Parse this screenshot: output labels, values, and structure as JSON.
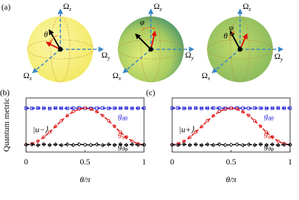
{
  "panel_a": {
    "label": "(a)",
    "axis_symbol": "Ω",
    "axis_subscripts": [
      "x",
      "y",
      "z"
    ],
    "angles": [
      "θ",
      "φ"
    ]
  },
  "chart_data": [
    {
      "type": "line",
      "panel_label": "(b)",
      "state_label": "|u−⟩",
      "xlabel": "θ/π",
      "ylabel": "Quantum metric",
      "x": [
        0,
        0.05,
        0.1,
        0.15,
        0.2,
        0.25,
        0.3,
        0.35,
        0.4,
        0.45,
        0.5,
        0.55,
        0.6,
        0.65,
        0.7,
        0.75,
        0.8,
        0.85,
        0.9,
        0.95,
        1
      ],
      "xlim": [
        0,
        1
      ],
      "xticks": [
        0,
        0.5,
        1
      ],
      "ylim": [
        -0.05,
        0.32
      ],
      "series": [
        {
          "name": "gθθ",
          "color": "#1a1ad8",
          "marker": "square",
          "values": [
            0.25,
            0.249,
            0.251,
            0.25,
            0.248,
            0.251,
            0.25,
            0.249,
            0.25,
            0.251,
            0.25,
            0.249,
            0.25,
            0.251,
            0.249,
            0.25,
            0.25,
            0.251,
            0.249,
            0.25,
            0.25
          ]
        },
        {
          "name": "gφφ",
          "color": "#e01010",
          "marker": "circle",
          "values": [
            0,
            0.006,
            0.024,
            0.052,
            0.086,
            0.125,
            0.164,
            0.199,
            0.226,
            0.244,
            0.25,
            0.244,
            0.226,
            0.199,
            0.164,
            0.125,
            0.086,
            0.052,
            0.024,
            0.006,
            0
          ]
        },
        {
          "name": "gθφ",
          "color": "#000000",
          "marker": "diamond",
          "values": [
            0,
            0.002,
            -0.003,
            0.003,
            -0.002,
            0.002,
            -0.003,
            0.002,
            -0.002,
            0.003,
            0,
            -0.002,
            0.002,
            -0.003,
            0.002,
            -0.002,
            0.003,
            -0.002,
            0.002,
            -0.001,
            0
          ]
        }
      ]
    },
    {
      "type": "line",
      "panel_label": "(c)",
      "state_label": "|u+⟩",
      "xlabel": "θ/π",
      "x": [
        0,
        0.05,
        0.1,
        0.15,
        0.2,
        0.25,
        0.3,
        0.35,
        0.4,
        0.45,
        0.5,
        0.55,
        0.6,
        0.65,
        0.7,
        0.75,
        0.8,
        0.85,
        0.9,
        0.95,
        1
      ],
      "xlim": [
        0,
        1
      ],
      "xticks": [
        0,
        0.5,
        1
      ],
      "ylim": [
        -0.05,
        0.32
      ],
      "series": [
        {
          "name": "gθθ",
          "color": "#1a1ad8",
          "marker": "square",
          "values": [
            0.25,
            0.251,
            0.249,
            0.25,
            0.251,
            0.249,
            0.25,
            0.251,
            0.25,
            0.249,
            0.25,
            0.251,
            0.25,
            0.249,
            0.251,
            0.25,
            0.249,
            0.25,
            0.251,
            0.25,
            0.25
          ]
        },
        {
          "name": "gφφ",
          "color": "#e01010",
          "marker": "circle",
          "values": [
            0,
            0.007,
            0.023,
            0.051,
            0.087,
            0.124,
            0.165,
            0.198,
            0.227,
            0.243,
            0.25,
            0.245,
            0.225,
            0.2,
            0.163,
            0.126,
            0.085,
            0.053,
            0.023,
            0.007,
            0
          ]
        },
        {
          "name": "gθφ",
          "color": "#000000",
          "marker": "diamond",
          "values": [
            0,
            -0.002,
            0.003,
            -0.002,
            0.002,
            -0.003,
            0.002,
            -0.002,
            0.003,
            -0.002,
            0,
            0.002,
            -0.003,
            0.002,
            -0.002,
            0.003,
            -0.002,
            0.002,
            -0.003,
            0.001,
            0
          ]
        }
      ]
    }
  ]
}
